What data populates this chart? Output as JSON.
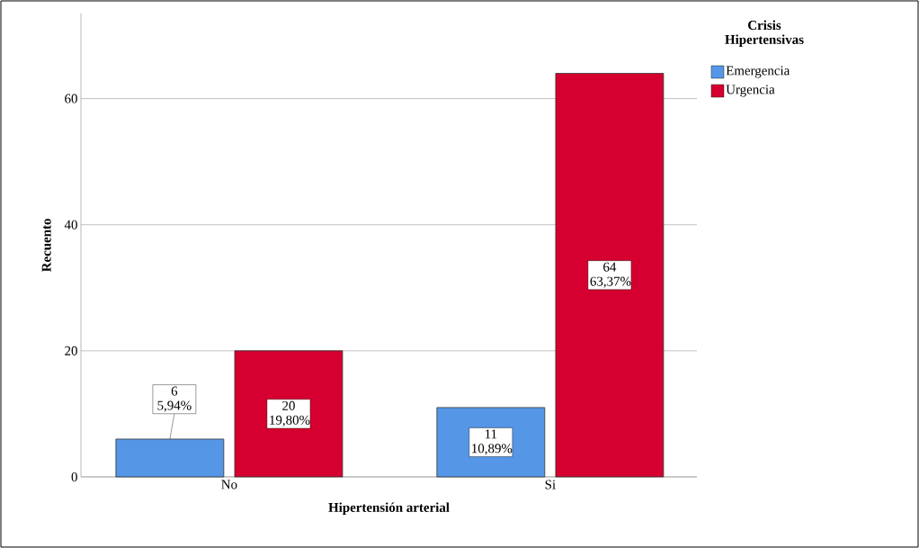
{
  "chart_data": {
    "type": "bar",
    "xlabel": "Hipertensión arterial",
    "ylabel": "Recuento",
    "legend_title": "Crisis Hipertensivas",
    "categories": [
      "No",
      "Si"
    ],
    "series": [
      {
        "name": "Emergencia",
        "color": "#5596e6",
        "values": [
          6,
          11
        ],
        "value_labels": [
          "6 5,94%",
          "11 10,89%"
        ]
      },
      {
        "name": "Urgencia",
        "color": "#d5002f",
        "values": [
          20,
          64
        ],
        "value_labels": [
          "20 19,80%",
          "64 63,37%"
        ]
      }
    ],
    "ylim": [
      0,
      73.5
    ],
    "yticks": [
      0,
      20,
      40,
      60
    ],
    "grid": "y",
    "legend": "top right"
  }
}
